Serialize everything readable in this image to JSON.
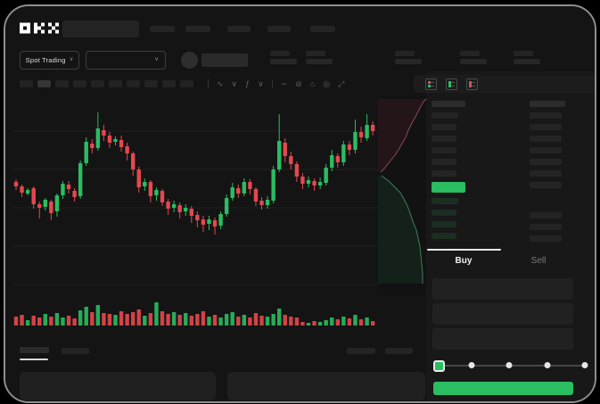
{
  "colors": {
    "green": "#2abd62",
    "red": "#e5484e",
    "bar": "#242424",
    "chip": "#232323",
    "chip_active": "#363636",
    "grid": "#1f1f1f",
    "icon": "#616161",
    "text": "#f2f2f2",
    "text_dim": "#7a7a7a",
    "bid_bar": "#1c2d22",
    "depth_bg": "#121212",
    "depth_ask_fill": "#241518",
    "depth_ask_line": "#8a4a50",
    "depth_bid_fill": "#142119",
    "depth_bid_line": "#3f7a6b"
  },
  "header": {
    "logo": "OKX",
    "market_selector": {
      "label": "Spot Trading",
      "chevron": "∨"
    },
    "pair_dropdown": {
      "chevron": "∨"
    }
  },
  "toolbar": {
    "timeframe_count": 10,
    "active_timeframe_index": 1,
    "icons": [
      {
        "glyph": "|",
        "name": "separator"
      },
      {
        "glyph": "∿",
        "name": "chart-type-icon"
      },
      {
        "glyph": "∨",
        "name": "chart-type-chevron-icon"
      },
      {
        "glyph": "ƒ",
        "name": "indicators-icon"
      },
      {
        "glyph": "∨",
        "name": "indicators-chevron-icon"
      },
      {
        "glyph": "|",
        "name": "separator"
      },
      {
        "glyph": "∼",
        "name": "line-tool-icon"
      },
      {
        "glyph": "⊘",
        "name": "compare-icon"
      },
      {
        "glyph": "⌂",
        "name": "camera-icon"
      },
      {
        "glyph": "◎",
        "name": "settings-icon"
      },
      {
        "glyph": "⤢",
        "name": "fullscreen-icon"
      }
    ]
  },
  "order_book": {
    "ask_sizes": [
      30,
      28,
      28,
      28,
      28,
      28
    ],
    "bid_sizes": [
      30,
      28,
      28,
      28
    ],
    "right_top_sizes": [
      36,
      36,
      36,
      36,
      36,
      36,
      36
    ],
    "right_bottom_sizes": [
      36,
      36,
      36
    ]
  },
  "trade_panel": {
    "tabs": [
      {
        "label": "Buy",
        "active": true
      },
      {
        "label": "Sell",
        "active": false
      }
    ],
    "field_count": 3,
    "slider": {
      "stops": 5,
      "active_stop": 0
    }
  },
  "chart_data": [
    {
      "type": "candlestick",
      "title": "",
      "format": "[open,close,high,low] in relative price units (higher = higher price)",
      "ylim": [
        0,
        230
      ],
      "grid": true,
      "gridlines": [
        11,
        54,
        97,
        140,
        183
      ],
      "up_color": "#2abd62",
      "down_color": "#e5484e",
      "candles": [
        [
          126,
          121,
          129,
          117
        ],
        [
          121,
          114,
          123,
          109
        ],
        [
          113,
          117,
          119,
          111
        ],
        [
          119,
          101,
          121,
          96
        ],
        [
          101,
          97,
          104,
          85
        ],
        [
          98,
          106,
          108,
          94
        ],
        [
          104,
          91,
          106,
          83
        ],
        [
          93,
          111,
          113,
          87
        ],
        [
          111,
          124,
          127,
          107
        ],
        [
          123,
          118,
          127,
          113
        ],
        [
          116,
          109,
          119,
          104
        ],
        [
          110,
          147,
          150,
          107
        ],
        [
          147,
          171,
          176,
          144
        ],
        [
          169,
          164,
          174,
          158
        ],
        [
          164,
          186,
          204,
          161
        ],
        [
          184,
          178,
          190,
          172
        ],
        [
          178,
          170,
          182,
          164
        ],
        [
          171,
          174,
          177,
          167
        ],
        [
          173,
          165,
          178,
          160
        ],
        [
          166,
          158,
          170,
          150
        ],
        [
          158,
          140,
          160,
          133
        ],
        [
          140,
          120,
          143,
          114
        ],
        [
          121,
          126,
          130,
          116
        ],
        [
          126,
          110,
          128,
          103
        ],
        [
          111,
          117,
          120,
          105
        ],
        [
          116,
          103,
          118,
          99
        ],
        [
          104,
          96,
          107,
          89
        ],
        [
          97,
          101,
          105,
          92
        ],
        [
          100,
          92,
          103,
          85
        ],
        [
          93,
          97,
          101,
          88
        ],
        [
          96,
          88,
          99,
          80
        ],
        [
          89,
          83,
          93,
          75
        ],
        [
          84,
          78,
          88,
          70
        ],
        [
          79,
          84,
          88,
          72
        ],
        [
          83,
          76,
          86,
          67
        ],
        [
          77,
          90,
          93,
          73
        ],
        [
          90,
          108,
          112,
          87
        ],
        [
          108,
          120,
          125,
          105
        ],
        [
          119,
          113,
          123,
          108
        ],
        [
          113,
          126,
          130,
          110
        ],
        [
          126,
          118,
          129,
          112
        ],
        [
          118,
          104,
          120,
          99
        ],
        [
          105,
          100,
          109,
          95
        ],
        [
          100,
          106,
          110,
          96
        ],
        [
          105,
          140,
          144,
          102
        ],
        [
          140,
          172,
          202,
          137
        ],
        [
          170,
          155,
          175,
          148
        ],
        [
          155,
          146,
          160,
          140
        ],
        [
          146,
          132,
          149,
          126
        ],
        [
          132,
          124,
          136,
          118
        ],
        [
          124,
          128,
          132,
          120
        ],
        [
          127,
          122,
          130,
          116
        ],
        [
          122,
          126,
          131,
          118
        ],
        [
          125,
          142,
          146,
          122
        ],
        [
          142,
          156,
          162,
          138
        ],
        [
          155,
          148,
          158,
          142
        ],
        [
          148,
          168,
          172,
          144
        ],
        [
          168,
          162,
          172,
          156
        ],
        [
          162,
          182,
          196,
          158
        ],
        [
          182,
          176,
          188,
          170
        ],
        [
          175,
          190,
          202,
          172
        ],
        [
          190,
          183,
          194,
          178
        ]
      ]
    },
    {
      "type": "bar",
      "subtype": "volume",
      "colors_follow": "candle direction",
      "values": [
        10,
        12,
        6,
        11,
        9,
        13,
        10,
        14,
        9,
        11,
        8,
        17,
        21,
        15,
        23,
        14,
        13,
        12,
        16,
        13,
        15,
        18,
        11,
        14,
        26,
        16,
        13,
        15,
        12,
        14,
        11,
        13,
        16,
        10,
        12,
        9,
        13,
        15,
        10,
        12,
        9,
        14,
        11,
        10,
        13,
        19,
        12,
        10,
        9,
        4,
        3,
        5,
        4,
        6,
        9,
        7,
        10,
        8,
        12,
        7,
        9,
        5
      ]
    },
    {
      "type": "area",
      "subtype": "depth",
      "asks_curve": [
        [
          3,
          85
        ],
        [
          7,
          81
        ],
        [
          11,
          76
        ],
        [
          15,
          71
        ],
        [
          19,
          66
        ],
        [
          23,
          60
        ],
        [
          27,
          53
        ],
        [
          31,
          46
        ],
        [
          34,
          38
        ],
        [
          38,
          30
        ],
        [
          42,
          23
        ],
        [
          45,
          17
        ],
        [
          48,
          11
        ],
        [
          51,
          6
        ],
        [
          54,
          3
        ]
      ],
      "bids_curve": [
        [
          4,
          89
        ],
        [
          8,
          92
        ],
        [
          12,
          95
        ],
        [
          16,
          99
        ],
        [
          20,
          103
        ],
        [
          25,
          108
        ],
        [
          29,
          115
        ],
        [
          33,
          123
        ],
        [
          36,
          131
        ],
        [
          39,
          140
        ],
        [
          43,
          150
        ],
        [
          45,
          159
        ],
        [
          47,
          168
        ],
        [
          48,
          178
        ],
        [
          49,
          188
        ],
        [
          50,
          198
        ],
        [
          50,
          210
        ]
      ]
    }
  ]
}
